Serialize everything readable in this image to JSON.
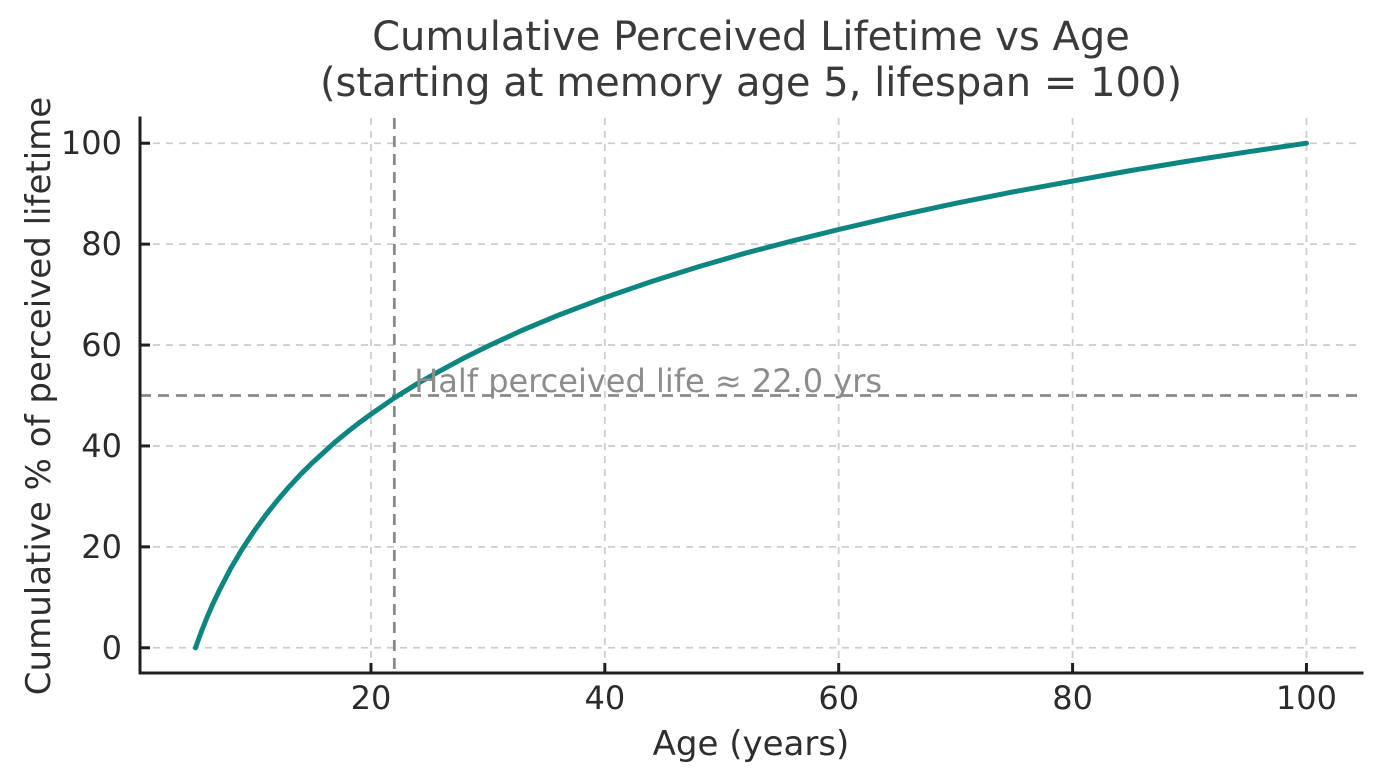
{
  "chart_data": {
    "type": "line",
    "title_line1": "Cumulative Perceived Lifetime vs Age",
    "title_line2": "(starting at memory age 5, lifespan = 100)",
    "xlabel": "Age (years)",
    "ylabel": "Cumulative % of perceived lifetime",
    "xlim": [
      0.25,
      104.75
    ],
    "ylim": [
      -5,
      105
    ],
    "x_ticks": [
      20,
      40,
      60,
      80,
      100
    ],
    "y_ticks": [
      0,
      20,
      40,
      60,
      80,
      100
    ],
    "grid": true,
    "legend": false,
    "series": [
      {
        "name": "cumulative-perceived-lifetime",
        "model": "y = 100 * ln(age/5) / ln(100/5), age from 5 to 100",
        "x_start": 5,
        "x_end": 100,
        "points": [
          [
            5,
            0
          ],
          [
            5.5,
            3.2
          ],
          [
            6,
            6.1
          ],
          [
            6.5,
            8.8
          ],
          [
            7,
            11.2
          ],
          [
            7.5,
            13.5
          ],
          [
            8,
            15.7
          ],
          [
            9,
            19.6
          ],
          [
            10,
            23.1
          ],
          [
            11,
            26.3
          ],
          [
            12,
            29.2
          ],
          [
            13,
            31.9
          ],
          [
            14,
            34.4
          ],
          [
            15,
            36.7
          ],
          [
            16,
            38.8
          ],
          [
            17,
            40.9
          ],
          [
            18,
            42.8
          ],
          [
            19,
            44.6
          ],
          [
            20,
            46.3
          ],
          [
            22,
            49.5
          ],
          [
            24,
            52.4
          ],
          [
            26,
            55.0
          ],
          [
            28,
            57.5
          ],
          [
            30,
            59.8
          ],
          [
            33,
            63.0
          ],
          [
            36,
            65.9
          ],
          [
            40,
            69.4
          ],
          [
            44,
            72.6
          ],
          [
            48,
            75.5
          ],
          [
            52,
            78.2
          ],
          [
            56,
            80.6
          ],
          [
            60,
            82.9
          ],
          [
            65,
            85.6
          ],
          [
            70,
            88.1
          ],
          [
            75,
            90.4
          ],
          [
            80,
            92.5
          ],
          [
            85,
            94.6
          ],
          [
            90,
            96.5
          ],
          [
            95,
            98.3
          ],
          [
            100,
            100
          ]
        ]
      }
    ],
    "reference_lines": {
      "horizontal_y": 50,
      "vertical_x": 22
    },
    "annotation": {
      "text": "Half perceived life ≈ 22.0 yrs",
      "x": 23.7,
      "y": 50.7,
      "half_life_years": 22.0
    },
    "colors": {
      "background": "#ffffff",
      "curve": "#0d8580",
      "grid": "#cdcdcd",
      "reference": "#8a8a8a",
      "spine": "#1f1f1f",
      "tick_label": "#2b2b2b",
      "title": "#3a3a3a",
      "axis_label": "#2e2e2e",
      "annotation": "#8c8c8c"
    }
  }
}
